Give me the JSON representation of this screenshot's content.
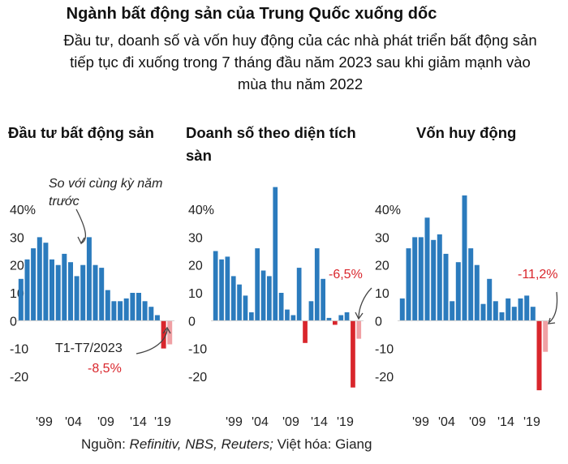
{
  "title": "Ngành bất động sản của Trung Quốc xuống dốc",
  "subtitle_lines": [
    "Đầu tư, doanh số và vốn huy động của các nhà phát triển bất động sản",
    "tiếp tục đi xuống trong 7 tháng đầu năm 2023 sau khi giảm mạnh vào",
    "mùa thu năm 2022"
  ],
  "annotation_yoy": [
    "So với cùng kỳ năm",
    "trước"
  ],
  "period_label": "T1-T7/2023",
  "source": {
    "prefix": "Nguồn: ",
    "italic": "Refinitiv, NBS, Reuters;",
    "suffix": " Việt hóa: Giang"
  },
  "colors": {
    "bar": "#2b7bbd",
    "negative": "#d9262c",
    "latest": "#f0a0a4",
    "text": "#111111"
  },
  "chart_data": [
    {
      "type": "bar",
      "title": "Đầu tư bất động sản",
      "y_tick_labels": [
        "40%",
        "30",
        "20",
        "10",
        "0",
        "-10",
        "-20"
      ],
      "y_ticks": [
        40,
        30,
        20,
        10,
        0,
        -10,
        -20
      ],
      "ylim": [
        -27,
        47
      ],
      "x_tick_labels": [
        "'99",
        "'04",
        "'09",
        "'14",
        "'19"
      ],
      "latest_change": "-8,5%",
      "values": [
        15,
        22,
        26,
        30,
        28,
        22,
        20,
        24,
        21,
        16,
        20,
        30,
        20,
        19,
        11,
        7,
        7,
        8,
        10,
        10,
        7,
        5,
        2,
        -10,
        -8.5
      ]
    },
    {
      "type": "bar",
      "title": "Doanh số theo diện tích sàn",
      "y_tick_labels": [
        "40%",
        "30",
        "20",
        "10",
        "0",
        "-10",
        "-20"
      ],
      "y_ticks": [
        40,
        30,
        20,
        10,
        0,
        -10,
        -20
      ],
      "ylim": [
        -27,
        47
      ],
      "x_tick_labels": [
        "'99",
        "'04",
        "'09",
        "'14",
        "'19"
      ],
      "latest_change": "-6,5%",
      "values": [
        25,
        22,
        23,
        16,
        13,
        9,
        3,
        26,
        18,
        16,
        48,
        10,
        4,
        2,
        19,
        -8,
        7,
        26,
        15,
        1,
        -1.5,
        2,
        3,
        -24,
        -6.5
      ]
    },
    {
      "type": "bar",
      "title": "Vốn huy động",
      "y_tick_labels": [
        "40%",
        "30",
        "20",
        "10",
        "0",
        "-10",
        "-20"
      ],
      "y_ticks": [
        40,
        30,
        20,
        10,
        0,
        -10,
        -20
      ],
      "ylim": [
        -27,
        47
      ],
      "x_tick_labels": [
        "'99",
        "'04",
        "'09",
        "'14",
        "'19"
      ],
      "latest_change": "-11,2%",
      "values": [
        8,
        26,
        30,
        30,
        37,
        29,
        31,
        24,
        7,
        21,
        45,
        26,
        20,
        6,
        15,
        7,
        3,
        8,
        5,
        8,
        9,
        5,
        -25,
        -11.2
      ]
    }
  ]
}
